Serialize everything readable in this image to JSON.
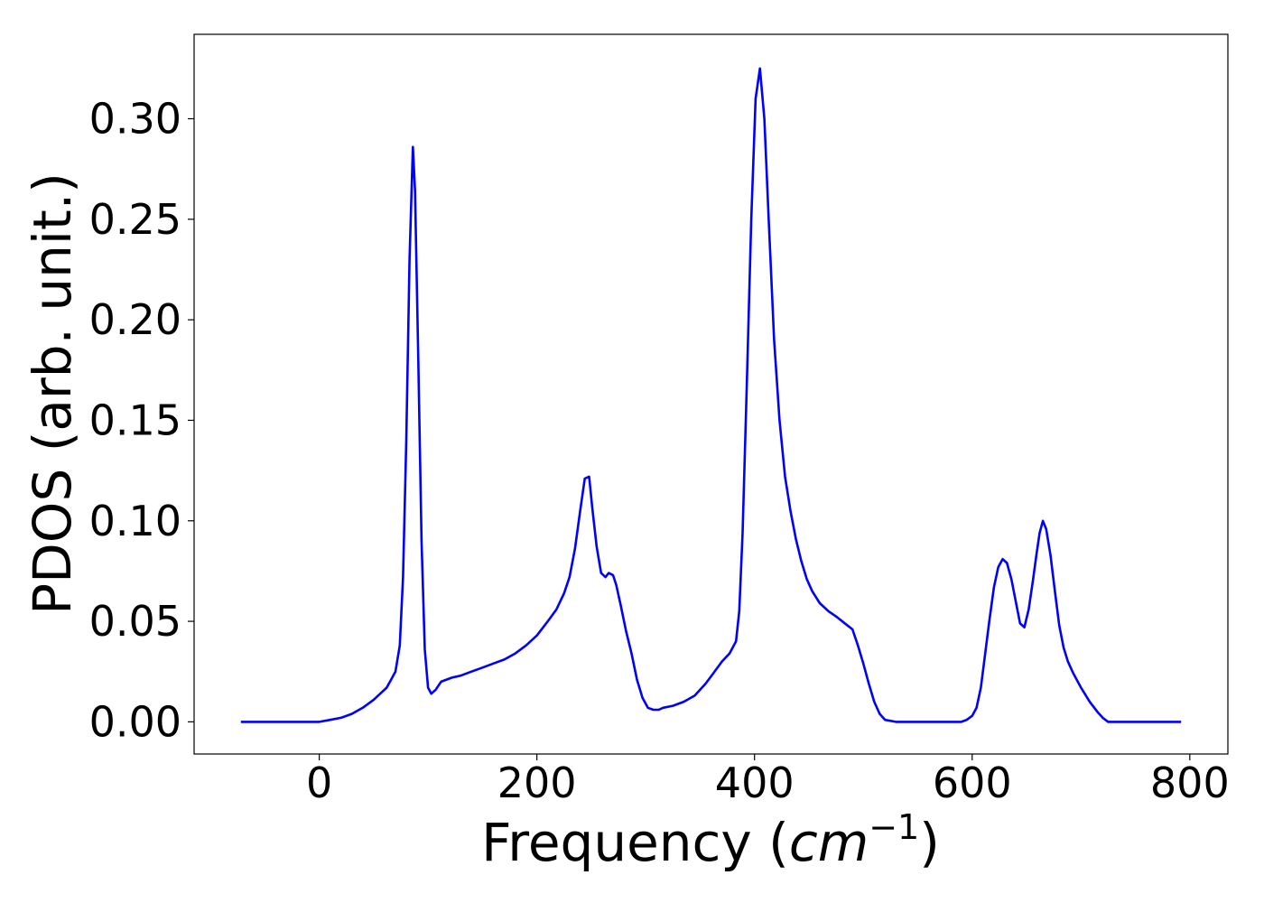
{
  "chart_data": {
    "type": "line",
    "xlabel_prefix": "Frequency (",
    "xlabel_unit_base": "cm",
    "xlabel_unit_exp": "−1",
    "xlabel_suffix": ")",
    "ylabel": "PDOS (arb. unit.)",
    "xlim": [
      -115,
      835
    ],
    "ylim": [
      -0.016,
      0.342
    ],
    "xticks": [
      0,
      200,
      400,
      600,
      800
    ],
    "xtick_labels": [
      "0",
      "200",
      "400",
      "600",
      "800"
    ],
    "yticks": [
      0.0,
      0.05,
      0.1,
      0.15,
      0.2,
      0.25,
      0.3
    ],
    "ytick_labels": [
      "0.00",
      "0.05",
      "0.10",
      "0.15",
      "0.20",
      "0.25",
      "0.30"
    ],
    "grid": false,
    "series": [
      {
        "color": "#0000ff",
        "x": [
          -72,
          -40,
          -10,
          0,
          10,
          20,
          30,
          40,
          50,
          56,
          62,
          66,
          70,
          74,
          77,
          80,
          83,
          86,
          88,
          91,
          94,
          97,
          100,
          103,
          107,
          112,
          117,
          122,
          130,
          140,
          150,
          160,
          170,
          180,
          190,
          200,
          210,
          218,
          225,
          230,
          235,
          240,
          244,
          248,
          251,
          255,
          259,
          263,
          266,
          270,
          273,
          277,
          282,
          287,
          292,
          297,
          302,
          307,
          312,
          316,
          325,
          335,
          345,
          355,
          362,
          370,
          377,
          383,
          386,
          389,
          393,
          397,
          401,
          405,
          409,
          413,
          418,
          423,
          428,
          433,
          438,
          443,
          448,
          453,
          460,
          468,
          476,
          483,
          490,
          495,
          500,
          505,
          510,
          515,
          520,
          530,
          560,
          590,
          595,
          600,
          604,
          608,
          612,
          616,
          620,
          624,
          628,
          632,
          636,
          640,
          644,
          648,
          652,
          656,
          659,
          662,
          665,
          668,
          672,
          676,
          680,
          684,
          688,
          693,
          700,
          708,
          715,
          720,
          725,
          730,
          740,
          780,
          792
        ],
        "y": [
          0.0,
          0.0,
          0.0,
          0.0,
          0.001,
          0.002,
          0.004,
          0.007,
          0.011,
          0.014,
          0.017,
          0.021,
          0.025,
          0.038,
          0.072,
          0.14,
          0.23,
          0.286,
          0.264,
          0.18,
          0.09,
          0.036,
          0.017,
          0.014,
          0.016,
          0.02,
          0.021,
          0.022,
          0.023,
          0.025,
          0.027,
          0.029,
          0.031,
          0.034,
          0.038,
          0.043,
          0.05,
          0.056,
          0.064,
          0.072,
          0.086,
          0.106,
          0.121,
          0.122,
          0.106,
          0.087,
          0.074,
          0.072,
          0.074,
          0.073,
          0.068,
          0.058,
          0.045,
          0.034,
          0.021,
          0.012,
          0.007,
          0.006,
          0.006,
          0.007,
          0.008,
          0.01,
          0.013,
          0.019,
          0.024,
          0.03,
          0.034,
          0.04,
          0.055,
          0.094,
          0.17,
          0.25,
          0.31,
          0.325,
          0.3,
          0.25,
          0.19,
          0.15,
          0.122,
          0.105,
          0.091,
          0.08,
          0.071,
          0.065,
          0.059,
          0.055,
          0.052,
          0.049,
          0.046,
          0.038,
          0.029,
          0.019,
          0.01,
          0.004,
          0.001,
          0.0,
          0.0,
          0.0,
          0.001,
          0.003,
          0.007,
          0.017,
          0.034,
          0.051,
          0.067,
          0.077,
          0.081,
          0.079,
          0.071,
          0.06,
          0.049,
          0.047,
          0.056,
          0.071,
          0.083,
          0.094,
          0.1,
          0.096,
          0.083,
          0.065,
          0.048,
          0.037,
          0.03,
          0.024,
          0.017,
          0.01,
          0.005,
          0.002,
          0.0,
          0.0,
          0.0,
          0.0,
          0.0
        ]
      }
    ]
  }
}
